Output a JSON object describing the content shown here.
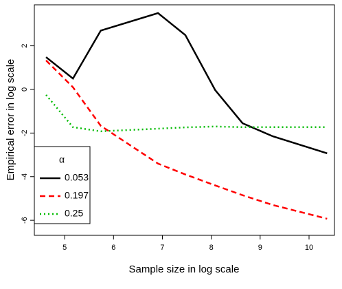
{
  "chart_data": {
    "type": "line",
    "x_label": "Sample size in log scale",
    "y_label": "Empirical error in log scale",
    "x": [
      4.62,
      5.17,
      5.74,
      6.91,
      7.47,
      8.08,
      8.64,
      9.26,
      10.37
    ],
    "series": [
      {
        "name": "0.053",
        "color": "#000000",
        "line_style": "solid",
        "values": [
          1.48,
          0.5,
          2.7,
          3.5,
          2.49,
          -0.03,
          -1.55,
          -2.15,
          -2.93
        ]
      },
      {
        "name": "0.197",
        "color": "#ff0000",
        "line_style": "dashed",
        "values": [
          1.33,
          0.1,
          -1.67,
          -3.4,
          -3.9,
          -4.4,
          -4.85,
          -5.3,
          -5.93
        ]
      },
      {
        "name": "0.25",
        "color": "#00bb00",
        "line_style": "dotted",
        "values": [
          -0.25,
          -1.73,
          -1.92,
          -1.8,
          -1.74,
          -1.7,
          -1.73,
          -1.73,
          -1.73
        ]
      }
    ],
    "legend_title": "α",
    "legend": "bottom-left",
    "xlim": [
      4.38,
      10.52
    ],
    "xticks": [
      5,
      6,
      7,
      8,
      9,
      10
    ],
    "ylim": [
      -6.69,
      3.88
    ],
    "yticks": [
      -6,
      -4,
      -2,
      0,
      2
    ]
  }
}
